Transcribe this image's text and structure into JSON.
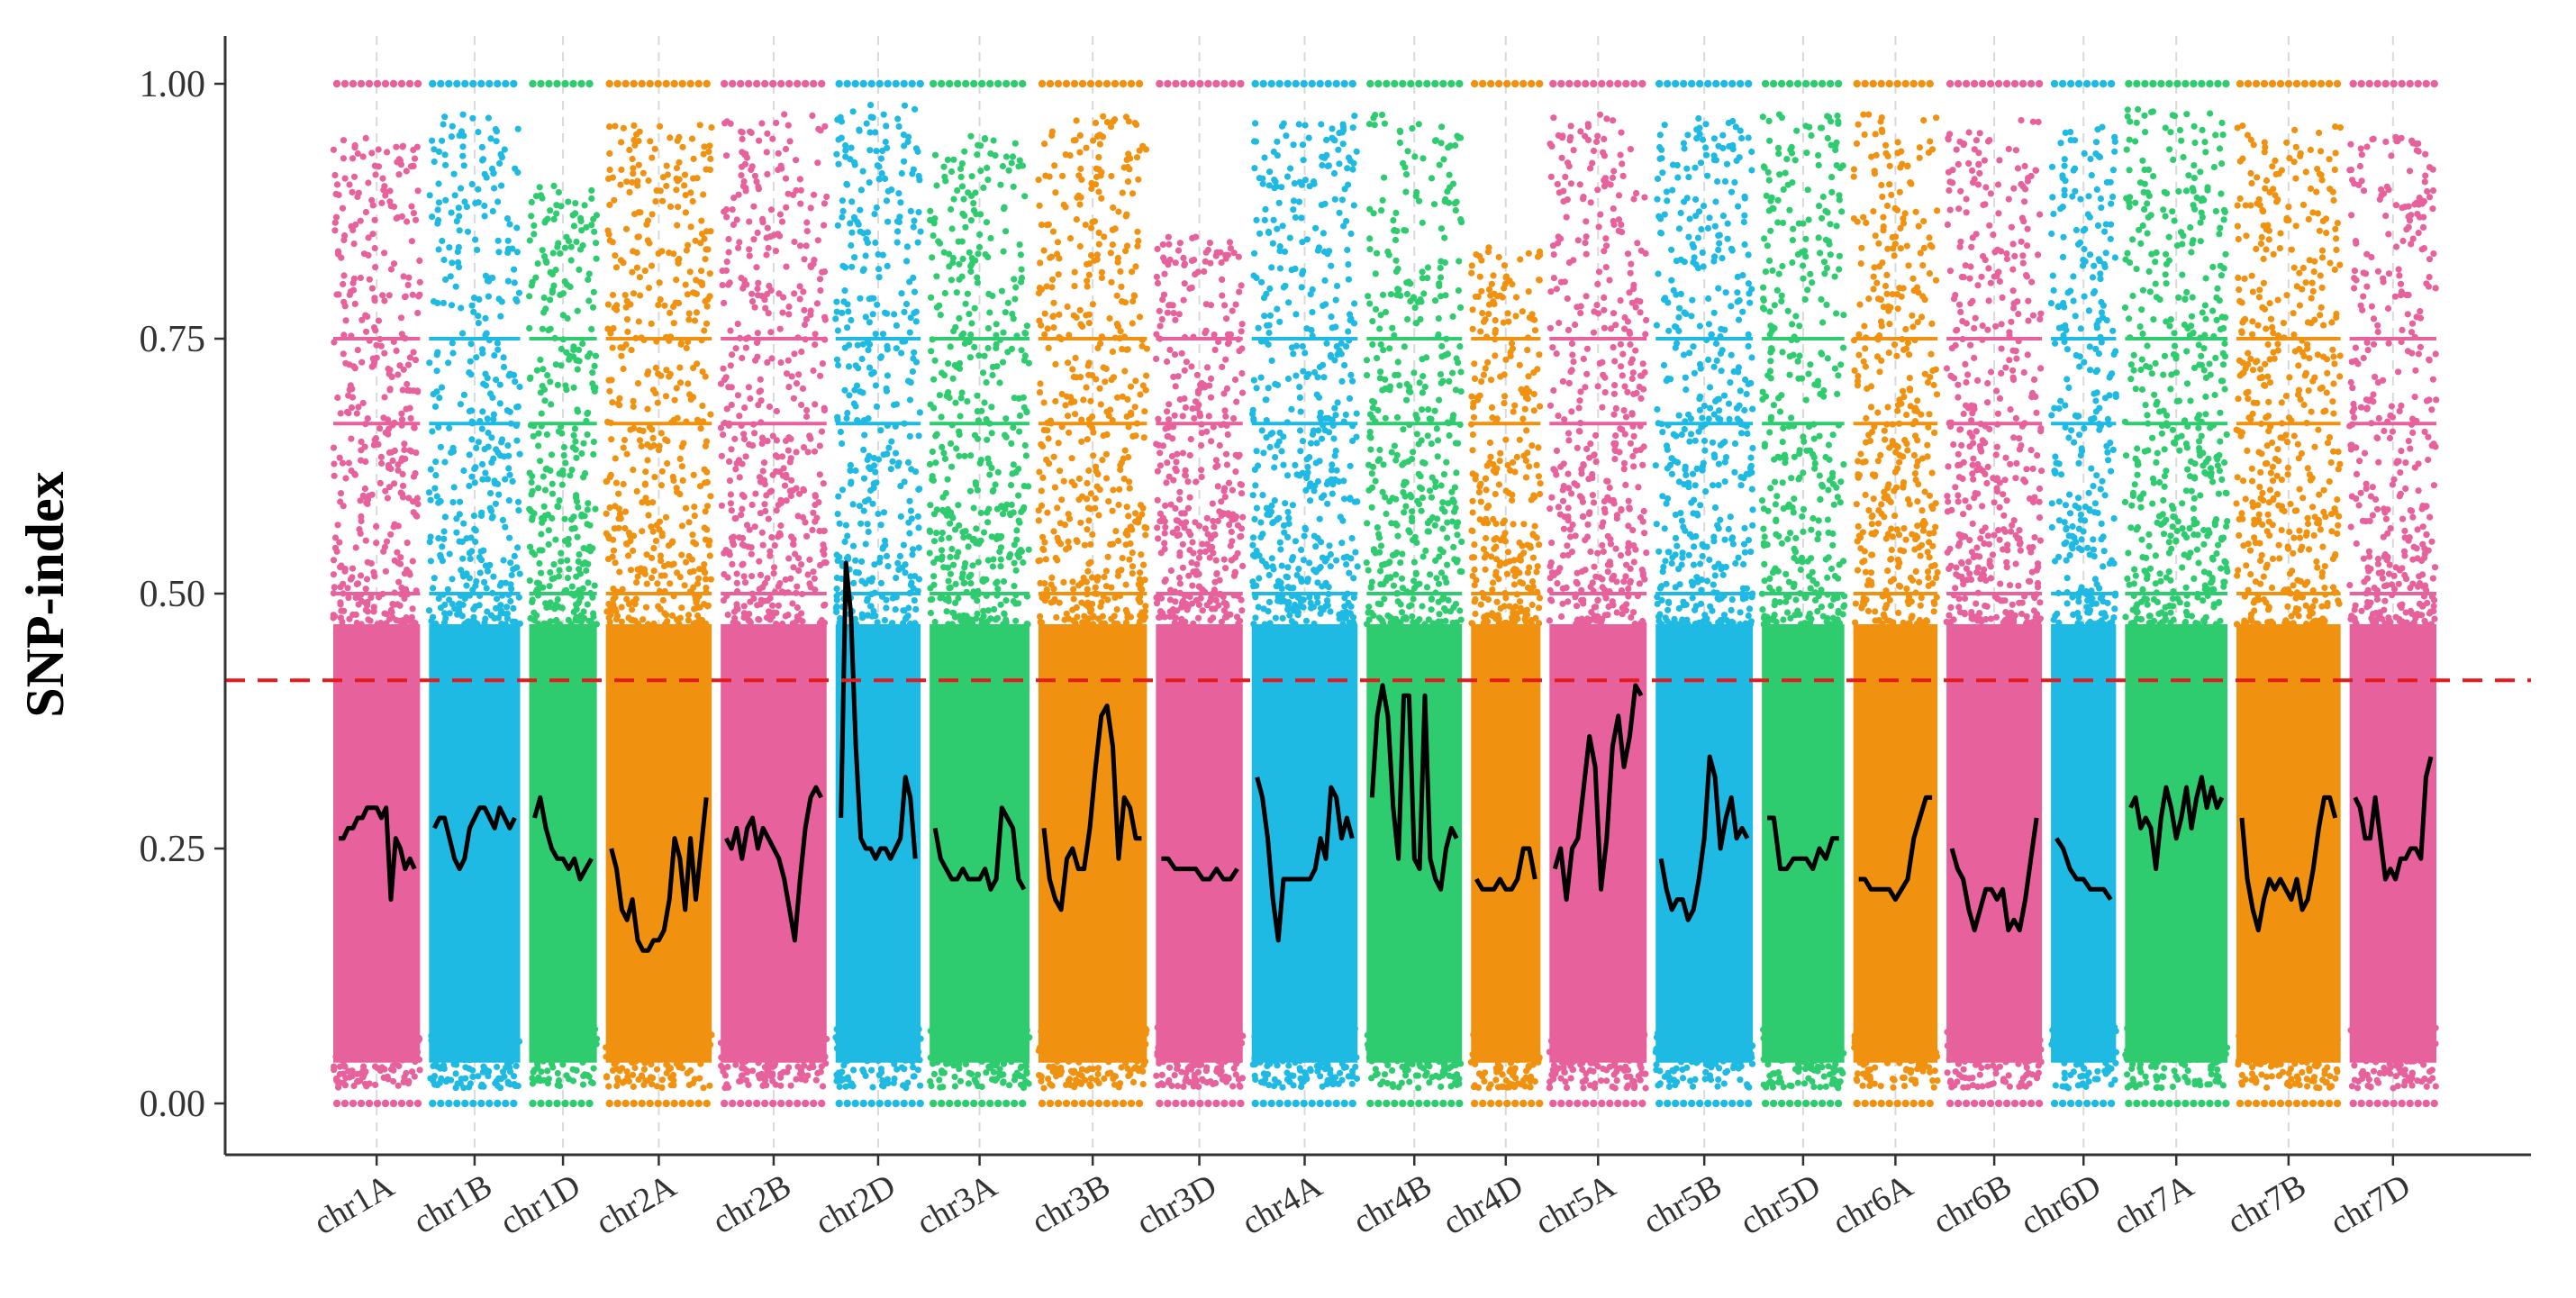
{
  "chart_data": {
    "type": "scatter",
    "title": "",
    "xlabel": "",
    "ylabel": "SNP-index",
    "ylim": [
      0,
      1
    ],
    "yticks": [
      "0.00",
      "0.25",
      "0.50",
      "0.75",
      "1.00"
    ],
    "ytick_values": [
      0,
      0.25,
      0.5,
      0.75,
      1
    ],
    "threshold": 0.415,
    "threshold_color": "#e41a1c",
    "grid": "vertical dashed separators between chromosomes",
    "legend": "none",
    "palette": [
      "#e7619c",
      "#1ebae3",
      "#2ecc6f",
      "#f0920f"
    ],
    "categories": [
      "chr1A",
      "chr1B",
      "chr1D",
      "chr2A",
      "chr2B",
      "chr2D",
      "chr3A",
      "chr3B",
      "chr3D",
      "chr4A",
      "chr4B",
      "chr4D",
      "chr5A",
      "chr5B",
      "chr5D",
      "chr6A",
      "chr6B",
      "chr6D",
      "chr7A",
      "chr7B",
      "chr7D"
    ],
    "chromosomes": [
      {
        "name": "chr1A",
        "color_index": 0,
        "relative_length": 1.0,
        "points_max": 0.95,
        "sliding_index": [
          0.26,
          0.26,
          0.27,
          0.27,
          0.28,
          0.28,
          0.29,
          0.29,
          0.29,
          0.28,
          0.29,
          0.2,
          0.26,
          0.25,
          0.23,
          0.24,
          0.23
        ]
      },
      {
        "name": "chr1B",
        "color_index": 1,
        "relative_length": 1.05,
        "points_max": 0.97,
        "sliding_index": [
          0.27,
          0.28,
          0.28,
          0.26,
          0.24,
          0.23,
          0.24,
          0.27,
          0.28,
          0.29,
          0.29,
          0.28,
          0.27,
          0.29,
          0.28,
          0.27,
          0.28
        ]
      },
      {
        "name": "chr1D",
        "color_index": 2,
        "relative_length": 0.78,
        "points_max": 0.9,
        "sliding_index": [
          0.28,
          0.3,
          0.27,
          0.25,
          0.24,
          0.24,
          0.23,
          0.24,
          0.22,
          0.23,
          0.24
        ]
      },
      {
        "name": "chr2A",
        "color_index": 3,
        "relative_length": 1.22,
        "points_max": 0.96,
        "sliding_index": [
          0.25,
          0.23,
          0.19,
          0.18,
          0.2,
          0.16,
          0.15,
          0.15,
          0.16,
          0.16,
          0.17,
          0.2,
          0.26,
          0.24,
          0.19,
          0.26,
          0.2,
          0.25,
          0.3
        ]
      },
      {
        "name": "chr2B",
        "color_index": 0,
        "relative_length": 1.22,
        "points_max": 0.97,
        "sliding_index": [
          0.26,
          0.25,
          0.27,
          0.24,
          0.27,
          0.28,
          0.25,
          0.27,
          0.26,
          0.25,
          0.24,
          0.22,
          0.19,
          0.16,
          0.22,
          0.27,
          0.3,
          0.31,
          0.3
        ]
      },
      {
        "name": "chr2D",
        "color_index": 1,
        "relative_length": 0.98,
        "points_max": 0.98,
        "sliding_index": [
          0.28,
          0.53,
          0.48,
          0.35,
          0.26,
          0.25,
          0.25,
          0.24,
          0.25,
          0.25,
          0.24,
          0.25,
          0.26,
          0.32,
          0.3,
          0.24
        ]
      },
      {
        "name": "chr3A",
        "color_index": 2,
        "relative_length": 1.15,
        "points_max": 0.95,
        "sliding_index": [
          0.27,
          0.24,
          0.23,
          0.22,
          0.22,
          0.23,
          0.22,
          0.22,
          0.22,
          0.23,
          0.21,
          0.22,
          0.29,
          0.28,
          0.27,
          0.22,
          0.21
        ]
      },
      {
        "name": "chr3B",
        "color_index": 3,
        "relative_length": 1.25,
        "points_max": 0.97,
        "sliding_index": [
          0.27,
          0.22,
          0.2,
          0.19,
          0.24,
          0.25,
          0.23,
          0.23,
          0.27,
          0.33,
          0.38,
          0.39,
          0.35,
          0.24,
          0.3,
          0.29,
          0.26,
          0.26
        ]
      },
      {
        "name": "chr3D",
        "color_index": 0,
        "relative_length": 1.0,
        "points_max": 0.85,
        "sliding_index": [
          0.24,
          0.24,
          0.23,
          0.23,
          0.23,
          0.23,
          0.22,
          0.22,
          0.23,
          0.22,
          0.22,
          0.23
        ]
      },
      {
        "name": "chr4A",
        "color_index": 1,
        "relative_length": 1.22,
        "points_max": 0.97,
        "sliding_index": [
          0.32,
          0.3,
          0.26,
          0.2,
          0.16,
          0.22,
          0.22,
          0.22,
          0.22,
          0.22,
          0.22,
          0.23,
          0.26,
          0.24,
          0.31,
          0.3,
          0.26,
          0.28,
          0.26
        ]
      },
      {
        "name": "chr4B",
        "color_index": 2,
        "relative_length": 1.1,
        "points_max": 0.97,
        "sliding_index": [
          0.3,
          0.38,
          0.41,
          0.38,
          0.29,
          0.24,
          0.4,
          0.4,
          0.24,
          0.23,
          0.4,
          0.24,
          0.22,
          0.21,
          0.25,
          0.27,
          0.26
        ]
      },
      {
        "name": "chr4D",
        "color_index": 3,
        "relative_length": 0.8,
        "points_max": 0.84,
        "sliding_index": [
          0.22,
          0.21,
          0.21,
          0.21,
          0.22,
          0.21,
          0.21,
          0.22,
          0.25,
          0.25,
          0.22
        ]
      },
      {
        "name": "chr5A",
        "color_index": 0,
        "relative_length": 1.12,
        "points_max": 0.97,
        "sliding_index": [
          0.23,
          0.25,
          0.2,
          0.25,
          0.26,
          0.31,
          0.36,
          0.33,
          0.21,
          0.26,
          0.35,
          0.38,
          0.33,
          0.36,
          0.41,
          0.4
        ]
      },
      {
        "name": "chr5B",
        "color_index": 1,
        "relative_length": 1.12,
        "points_max": 0.97,
        "sliding_index": [
          0.24,
          0.21,
          0.19,
          0.2,
          0.2,
          0.18,
          0.19,
          0.22,
          0.26,
          0.34,
          0.32,
          0.25,
          0.28,
          0.3,
          0.26,
          0.27,
          0.26
        ]
      },
      {
        "name": "chr5D",
        "color_index": 2,
        "relative_length": 0.95,
        "points_max": 0.97,
        "sliding_index": [
          0.28,
          0.28,
          0.23,
          0.23,
          0.24,
          0.24,
          0.24,
          0.23,
          0.25,
          0.24,
          0.26,
          0.26
        ]
      },
      {
        "name": "chr6A",
        "color_index": 3,
        "relative_length": 0.97,
        "points_max": 0.97,
        "sliding_index": [
          0.22,
          0.22,
          0.21,
          0.21,
          0.21,
          0.21,
          0.2,
          0.21,
          0.22,
          0.26,
          0.28,
          0.3,
          0.3
        ]
      },
      {
        "name": "chr6B",
        "color_index": 0,
        "relative_length": 1.1,
        "points_max": 0.97,
        "sliding_index": [
          0.25,
          0.23,
          0.22,
          0.19,
          0.17,
          0.19,
          0.21,
          0.21,
          0.2,
          0.21,
          0.17,
          0.18,
          0.17,
          0.2,
          0.24,
          0.28
        ]
      },
      {
        "name": "chr6D",
        "color_index": 1,
        "relative_length": 0.75,
        "points_max": 0.96,
        "sliding_index": [
          0.26,
          0.25,
          0.23,
          0.22,
          0.22,
          0.21,
          0.21,
          0.21,
          0.2
        ]
      },
      {
        "name": "chr7A",
        "color_index": 2,
        "relative_length": 1.18,
        "points_max": 0.98,
        "sliding_index": [
          0.29,
          0.3,
          0.27,
          0.28,
          0.27,
          0.23,
          0.28,
          0.31,
          0.29,
          0.26,
          0.28,
          0.31,
          0.27,
          0.3,
          0.32,
          0.29,
          0.31,
          0.29,
          0.3
        ]
      },
      {
        "name": "chr7B",
        "color_index": 3,
        "relative_length": 1.2,
        "points_max": 0.96,
        "sliding_index": [
          0.28,
          0.22,
          0.19,
          0.17,
          0.2,
          0.22,
          0.21,
          0.22,
          0.21,
          0.2,
          0.22,
          0.19,
          0.2,
          0.23,
          0.27,
          0.3,
          0.3,
          0.28
        ]
      },
      {
        "name": "chr7D",
        "color_index": 0,
        "relative_length": 1.0,
        "points_max": 0.95,
        "sliding_index": [
          0.3,
          0.29,
          0.26,
          0.26,
          0.3,
          0.26,
          0.22,
          0.23,
          0.22,
          0.24,
          0.24,
          0.25,
          0.25,
          0.24,
          0.32,
          0.34
        ]
      }
    ]
  }
}
